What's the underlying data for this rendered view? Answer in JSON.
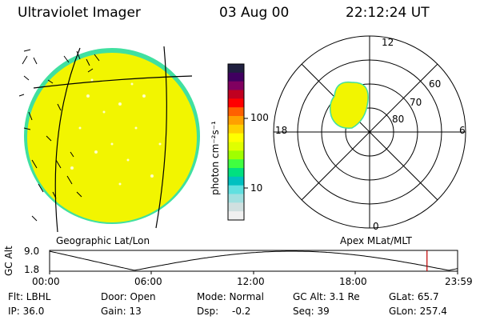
{
  "header": {
    "instrument": "Ultraviolet Imager",
    "date": "03 Aug 00",
    "time": "22:12:24 UT"
  },
  "colorbar": {
    "unit_label": "photon cm⁻²s⁻¹",
    "ticks": [
      "100",
      "10"
    ],
    "colors": [
      "#202040",
      "#400060",
      "#800060",
      "#c00020",
      "#ff0000",
      "#ff6000",
      "#ffa000",
      "#ffd000",
      "#ffff00",
      "#e0ff00",
      "#a0ff00",
      "#40ff40",
      "#00e080",
      "#00c0c0",
      "#60e0e0",
      "#a0e0e0",
      "#d0e0e0",
      "#f0f0f0"
    ]
  },
  "globe_panel": {
    "label": "Geographic Lat/Lon",
    "fill_color": "#f2f500",
    "edge_color": "#40e0a0"
  },
  "polar_panel": {
    "label": "Apex MLat/MLT",
    "hour_labels": {
      "top": "12",
      "left": "18",
      "right": "6",
      "bottom": "0"
    },
    "lat_labels": [
      "60",
      "70",
      "80"
    ]
  },
  "timeline": {
    "axis_label": "GC Alt",
    "y_max": "9.0",
    "y_min": "1.8",
    "ticks": [
      "00:00",
      "06:00",
      "12:00",
      "18:00",
      "23:59"
    ],
    "current_time_hours": 22.2,
    "marker_color": "#c00000"
  },
  "status": {
    "flt": "Flt: LBHL",
    "ip": "IP: 36.0",
    "door": "Door: Open",
    "gain": "Gain: 13",
    "mode": "Mode: Normal",
    "dsp_label": "Dsp:",
    "dsp_value": "-0.2",
    "gc_alt": "GC Alt: 3.1 Re",
    "seq": "Seq: 39",
    "glat": "GLat: 65.7",
    "glon": "GLon: 257.4"
  }
}
